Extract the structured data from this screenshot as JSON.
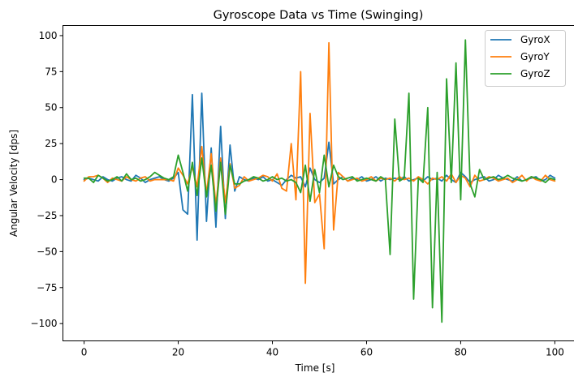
{
  "chart_data": {
    "type": "line",
    "title": "Gyroscope Data vs Time (Swinging)",
    "xlabel": "Time [s]",
    "ylabel": "Angular Velocity [dps]",
    "xlim": [
      -4.5,
      104.5
    ],
    "ylim": [
      -112,
      107
    ],
    "xticks": [
      0,
      20,
      40,
      60,
      80,
      100
    ],
    "yticks": [
      -100,
      -75,
      -50,
      -25,
      0,
      25,
      50,
      75,
      100
    ],
    "grid": false,
    "legend_position": "top-right",
    "x": [
      0,
      1,
      2,
      3,
      4,
      5,
      6,
      7,
      8,
      9,
      10,
      11,
      12,
      13,
      14,
      15,
      16,
      17,
      18,
      19,
      20,
      21,
      22,
      23,
      24,
      25,
      26,
      27,
      28,
      29,
      30,
      31,
      32,
      33,
      34,
      35,
      36,
      37,
      38,
      39,
      40,
      41,
      42,
      43,
      44,
      45,
      46,
      47,
      48,
      49,
      50,
      51,
      52,
      53,
      54,
      55,
      56,
      57,
      58,
      59,
      60,
      61,
      62,
      63,
      64,
      65,
      66,
      67,
      68,
      69,
      70,
      71,
      72,
      73,
      74,
      75,
      76,
      77,
      78,
      79,
      80,
      81,
      82,
      83,
      84,
      85,
      86,
      87,
      88,
      89,
      90,
      91,
      92,
      93,
      94,
      95,
      96,
      97,
      98,
      99,
      100
    ],
    "series": [
      {
        "name": "GyroX",
        "color": "#1f77b4",
        "values": [
          0,
          1,
          0,
          -1,
          2,
          0,
          -1,
          1,
          2,
          0,
          -1,
          3,
          1,
          -2,
          0,
          1,
          2,
          0,
          -1,
          1,
          5,
          -21,
          -24,
          59,
          -42,
          60,
          -29,
          22,
          -33,
          37,
          -27,
          24,
          -8,
          2,
          0,
          -1,
          1,
          0,
          2,
          -1,
          0,
          -2,
          -4,
          0,
          3,
          1,
          2,
          -5,
          8,
          0,
          -2,
          1,
          26,
          -3,
          0,
          2,
          -1,
          1,
          0,
          2,
          -1,
          0,
          2,
          -1,
          1,
          0,
          1,
          0,
          2,
          -1,
          0,
          1,
          -1,
          2,
          0,
          1,
          -1,
          3,
          0,
          -2,
          5,
          2,
          -2,
          0,
          1,
          2,
          -1,
          0,
          3,
          1,
          0,
          -1,
          2,
          -1,
          0,
          1,
          2,
          -1,
          0,
          3,
          1
        ]
      },
      {
        "name": "GyroY",
        "color": "#ff7f0e",
        "values": [
          -1,
          2,
          2,
          3,
          1,
          -2,
          1,
          0,
          -1,
          2,
          0,
          -1,
          1,
          2,
          -1,
          0,
          0,
          0,
          0,
          -1,
          8,
          3,
          -3,
          9,
          -5,
          23,
          -10,
          18,
          -18,
          15,
          -16,
          11,
          -6,
          -4,
          2,
          -1,
          0,
          1,
          3,
          2,
          -1,
          4,
          -6,
          -8,
          25,
          -14,
          75,
          -72,
          46,
          -16,
          -10,
          -48,
          95,
          -35,
          5,
          2,
          -1,
          0,
          1,
          -1,
          0,
          2,
          -1,
          1,
          0,
          1,
          -1,
          2,
          0,
          1,
          -1,
          2,
          0,
          -3,
          1,
          0,
          2,
          -1,
          4,
          -2,
          3,
          1,
          -5,
          3,
          -1,
          0,
          2,
          1,
          -1,
          0,
          1,
          -2,
          0,
          3,
          -1,
          2,
          0,
          -1,
          3,
          0,
          -1
        ]
      },
      {
        "name": "GyroZ",
        "color": "#2ca02c",
        "values": [
          1,
          1,
          -2,
          3,
          1,
          -1,
          0,
          2,
          -1,
          4,
          0,
          1,
          -1,
          0,
          2,
          5,
          3,
          1,
          0,
          2,
          17,
          5,
          -8,
          12,
          -11,
          15,
          -12,
          10,
          -22,
          12,
          -24,
          10,
          -3,
          -3,
          -1,
          0,
          2,
          1,
          -1,
          0,
          2,
          0,
          1,
          -1,
          0,
          -2,
          -9,
          10,
          -15,
          7,
          -9,
          17,
          -5,
          10,
          2,
          0,
          1,
          2,
          -1,
          0,
          1,
          0,
          -1,
          2,
          0,
          -52,
          42,
          -1,
          1,
          60,
          -83,
          1,
          -2,
          50,
          -89,
          5,
          -99,
          70,
          -2,
          81,
          -14,
          97,
          -3,
          -12,
          7,
          0,
          1,
          2,
          0,
          1,
          3,
          1,
          0,
          -1,
          0,
          2,
          1,
          0,
          -2,
          1,
          0
        ]
      }
    ]
  }
}
